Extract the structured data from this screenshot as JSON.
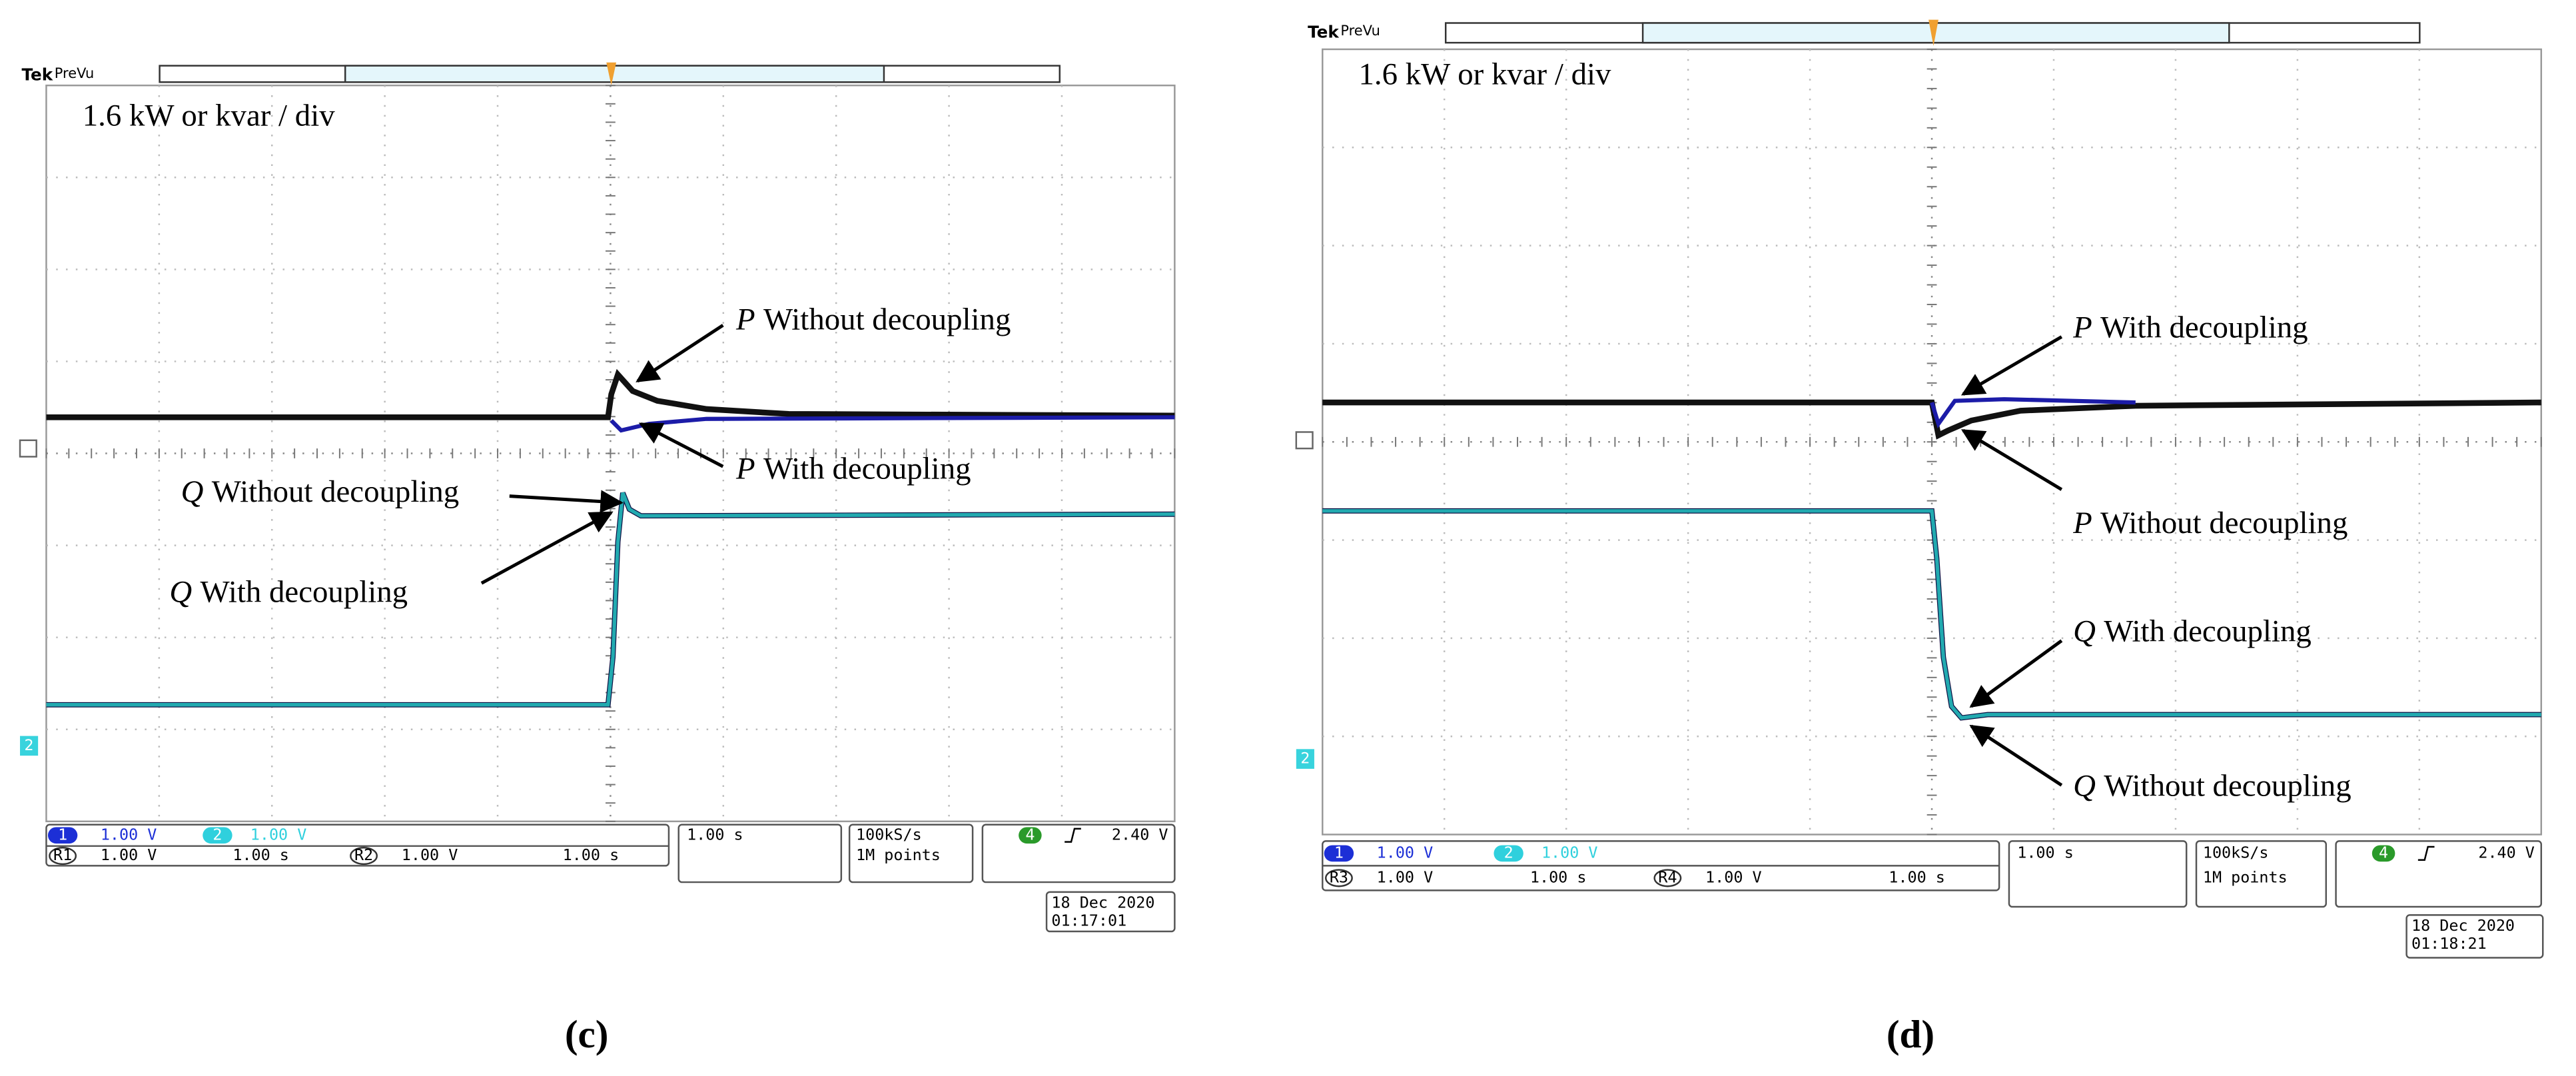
{
  "panels": [
    {
      "header": {
        "brand": "Tek",
        "mode": "PreVu"
      },
      "scale_label": "1.6 kW or kvar / div",
      "channel_marker": "2",
      "annotations": [
        {
          "symbol": "P",
          "text": "Without decoupling"
        },
        {
          "symbol": "P",
          "text": "With decoupling"
        },
        {
          "symbol": "Q",
          "text": "Without decoupling"
        },
        {
          "symbol": "Q",
          "text": "With decoupling"
        }
      ],
      "status": {
        "ch1": {
          "id": "1",
          "scale": "1.00 V"
        },
        "ch2": {
          "id": "2",
          "scale": "1.00 V"
        },
        "ref_a": {
          "id": "R1",
          "scale": "1.00 V",
          "time": "1.00 s"
        },
        "ref_b": {
          "id": "R2",
          "scale": "1.00 V",
          "time": "1.00 s"
        },
        "timebase": "1.00 s",
        "sample_rate": "100kS/s",
        "record_length": "1M points",
        "trigger": {
          "channel": "4",
          "level": "2.40 V"
        },
        "date": "18 Dec 2020",
        "time": "01:17:01"
      },
      "caption": "(c)"
    },
    {
      "header": {
        "brand": "Tek",
        "mode": "PreVu"
      },
      "scale_label": "1.6 kW or kvar / div",
      "channel_marker": "2",
      "annotations": [
        {
          "symbol": "P",
          "text": "With decoupling"
        },
        {
          "symbol": "P",
          "text": "Without decoupling"
        },
        {
          "symbol": "Q",
          "text": "With decoupling"
        },
        {
          "symbol": "Q",
          "text": "Without decoupling"
        }
      ],
      "status": {
        "ch1": {
          "id": "1",
          "scale": "1.00 V"
        },
        "ch2": {
          "id": "2",
          "scale": "1.00 V"
        },
        "ref_a": {
          "id": "R3",
          "scale": "1.00 V",
          "time": "1.00 s"
        },
        "ref_b": {
          "id": "R4",
          "scale": "1.00 V",
          "time": "1.00 s"
        },
        "timebase": "1.00 s",
        "sample_rate": "100kS/s",
        "record_length": "1M points",
        "trigger": {
          "channel": "4",
          "level": "2.40 V"
        },
        "date": "18 Dec 2020",
        "time": "01:18:21"
      },
      "caption": "(d)"
    }
  ]
}
